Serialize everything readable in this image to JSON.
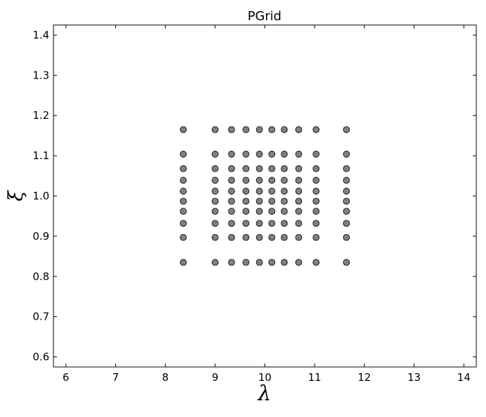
{
  "chart_data": {
    "type": "scatter",
    "title": "PGrid",
    "xlabel": "λ",
    "ylabel": "ξ",
    "xlim": [
      5.75,
      14.25
    ],
    "ylim": [
      0.575,
      1.425
    ],
    "xticks": [
      6,
      7,
      8,
      9,
      10,
      11,
      12,
      13,
      14
    ],
    "yticks": [
      0.6,
      0.7,
      0.8,
      0.9,
      1.0,
      1.1,
      1.2,
      1.3,
      1.4
    ],
    "xtick_labels": [
      "6",
      "7",
      "8",
      "9",
      "10",
      "11",
      "12",
      "13",
      "14"
    ],
    "ytick_labels": [
      "0.6",
      "0.7",
      "0.8",
      "0.9",
      "1.0",
      "1.1",
      "1.2",
      "1.3",
      "1.4"
    ],
    "grid": false,
    "grid_x_values": [
      8.36,
      9.0,
      9.33,
      9.62,
      9.89,
      10.14,
      10.39,
      10.68,
      11.03,
      11.64
    ],
    "grid_y_values": [
      0.835,
      0.897,
      0.932,
      0.962,
      0.987,
      1.012,
      1.039,
      1.068,
      1.104,
      1.165
    ],
    "marker_color": "#808080",
    "marker_edge_color": "#000000"
  }
}
